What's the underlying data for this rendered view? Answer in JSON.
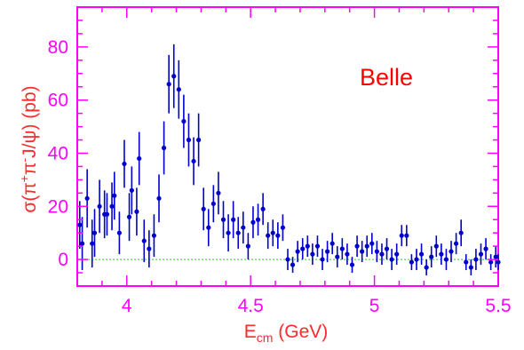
{
  "chart_data": {
    "type": "scatter",
    "title": "",
    "annotation": "Belle",
    "xlabel": {
      "main": "E",
      "sub": "cm",
      "rest": " (GeV)"
    },
    "ylabel": {
      "pre": "σ(π",
      "sup1": "+",
      "mid": "π",
      "sup2": "-",
      "post": "J/ψ) (pb)"
    },
    "xlim": [
      3.8,
      5.5
    ],
    "ylim": [
      -10,
      95
    ],
    "x_ticks": [
      4,
      4.5,
      5,
      5.5
    ],
    "x_tick_labels": [
      "4",
      "4.5",
      "5",
      "5.5"
    ],
    "y_ticks": [
      0,
      20,
      40,
      60,
      80
    ],
    "y_tick_labels": [
      "0",
      "20",
      "40",
      "60",
      "80"
    ],
    "grid": false,
    "zero_line": true,
    "colors": {
      "frame": "#ff00ff",
      "tick_labels": "#ff00ff",
      "axis_titles": "#ff2a2a",
      "annotation": "#ff0000",
      "points": "#0000cc",
      "zero_line": "#33cc33"
    },
    "series": [
      {
        "points": [
          [
            3.81,
            13,
            9
          ],
          [
            3.82,
            6,
            10
          ],
          [
            3.84,
            23,
            11
          ],
          [
            3.86,
            6,
            9
          ],
          [
            3.87,
            10,
            9
          ],
          [
            3.89,
            20,
            10
          ],
          [
            3.91,
            17,
            9
          ],
          [
            3.92,
            17,
            8
          ],
          [
            3.94,
            20,
            9
          ],
          [
            3.95,
            24,
            9
          ],
          [
            3.97,
            10,
            8
          ],
          [
            3.99,
            36,
            9
          ],
          [
            4.01,
            16,
            9
          ],
          [
            4.02,
            26,
            9
          ],
          [
            4.04,
            18,
            9
          ],
          [
            4.05,
            38,
            10
          ],
          [
            4.07,
            7,
            8
          ],
          [
            4.09,
            4,
            7
          ],
          [
            4.11,
            9,
            8
          ],
          [
            4.13,
            23,
            9
          ],
          [
            4.15,
            42,
            10
          ],
          [
            4.17,
            66,
            11
          ],
          [
            4.19,
            69,
            12
          ],
          [
            4.21,
            64,
            11
          ],
          [
            4.23,
            52,
            10
          ],
          [
            4.25,
            45,
            10
          ],
          [
            4.27,
            37,
            9
          ],
          [
            4.29,
            45,
            10
          ],
          [
            4.31,
            19,
            8
          ],
          [
            4.33,
            12,
            7
          ],
          [
            4.35,
            21,
            7
          ],
          [
            4.37,
            25,
            8
          ],
          [
            4.39,
            15,
            7
          ],
          [
            4.41,
            10,
            7
          ],
          [
            4.43,
            15,
            7
          ],
          [
            4.45,
            10,
            6
          ],
          [
            4.47,
            12,
            6
          ],
          [
            4.49,
            5,
            5
          ],
          [
            4.51,
            14,
            6
          ],
          [
            4.53,
            15,
            6
          ],
          [
            4.55,
            19,
            6
          ],
          [
            4.57,
            9,
            5
          ],
          [
            4.59,
            10,
            5
          ],
          [
            4.61,
            9,
            5
          ],
          [
            4.63,
            12,
            5
          ],
          [
            4.65,
            0,
            4
          ],
          [
            4.67,
            -2,
            3
          ],
          [
            4.69,
            3,
            4
          ],
          [
            4.71,
            4,
            4
          ],
          [
            4.73,
            5,
            4
          ],
          [
            4.75,
            2,
            4
          ],
          [
            4.77,
            5,
            4
          ],
          [
            4.79,
            0,
            4
          ],
          [
            4.81,
            3,
            4
          ],
          [
            4.83,
            6,
            4
          ],
          [
            4.85,
            1,
            4
          ],
          [
            4.87,
            4,
            4
          ],
          [
            4.89,
            2,
            4
          ],
          [
            4.91,
            -2,
            3
          ],
          [
            4.93,
            5,
            4
          ],
          [
            4.95,
            3,
            4
          ],
          [
            4.97,
            5,
            4
          ],
          [
            4.99,
            6,
            4
          ],
          [
            5.01,
            3,
            4
          ],
          [
            5.03,
            2,
            4
          ],
          [
            5.05,
            4,
            4
          ],
          [
            5.07,
            0,
            4
          ],
          [
            5.09,
            2,
            4
          ],
          [
            5.11,
            9,
            4
          ],
          [
            5.13,
            9,
            4
          ],
          [
            5.15,
            -1,
            3
          ],
          [
            5.17,
            0,
            4
          ],
          [
            5.19,
            2,
            4
          ],
          [
            5.21,
            -3,
            3
          ],
          [
            5.23,
            1,
            4
          ],
          [
            5.25,
            5,
            4
          ],
          [
            5.27,
            2,
            4
          ],
          [
            5.29,
            0,
            4
          ],
          [
            5.31,
            3,
            4
          ],
          [
            5.33,
            6,
            4
          ],
          [
            5.35,
            10,
            5
          ],
          [
            5.37,
            -1,
            3
          ],
          [
            5.39,
            -3,
            3
          ],
          [
            5.41,
            0,
            4
          ],
          [
            5.43,
            2,
            4
          ],
          [
            5.45,
            4,
            4
          ],
          [
            5.47,
            -1,
            3
          ],
          [
            5.49,
            1,
            4
          ],
          [
            5.5,
            -1,
            3
          ]
        ]
      }
    ]
  }
}
